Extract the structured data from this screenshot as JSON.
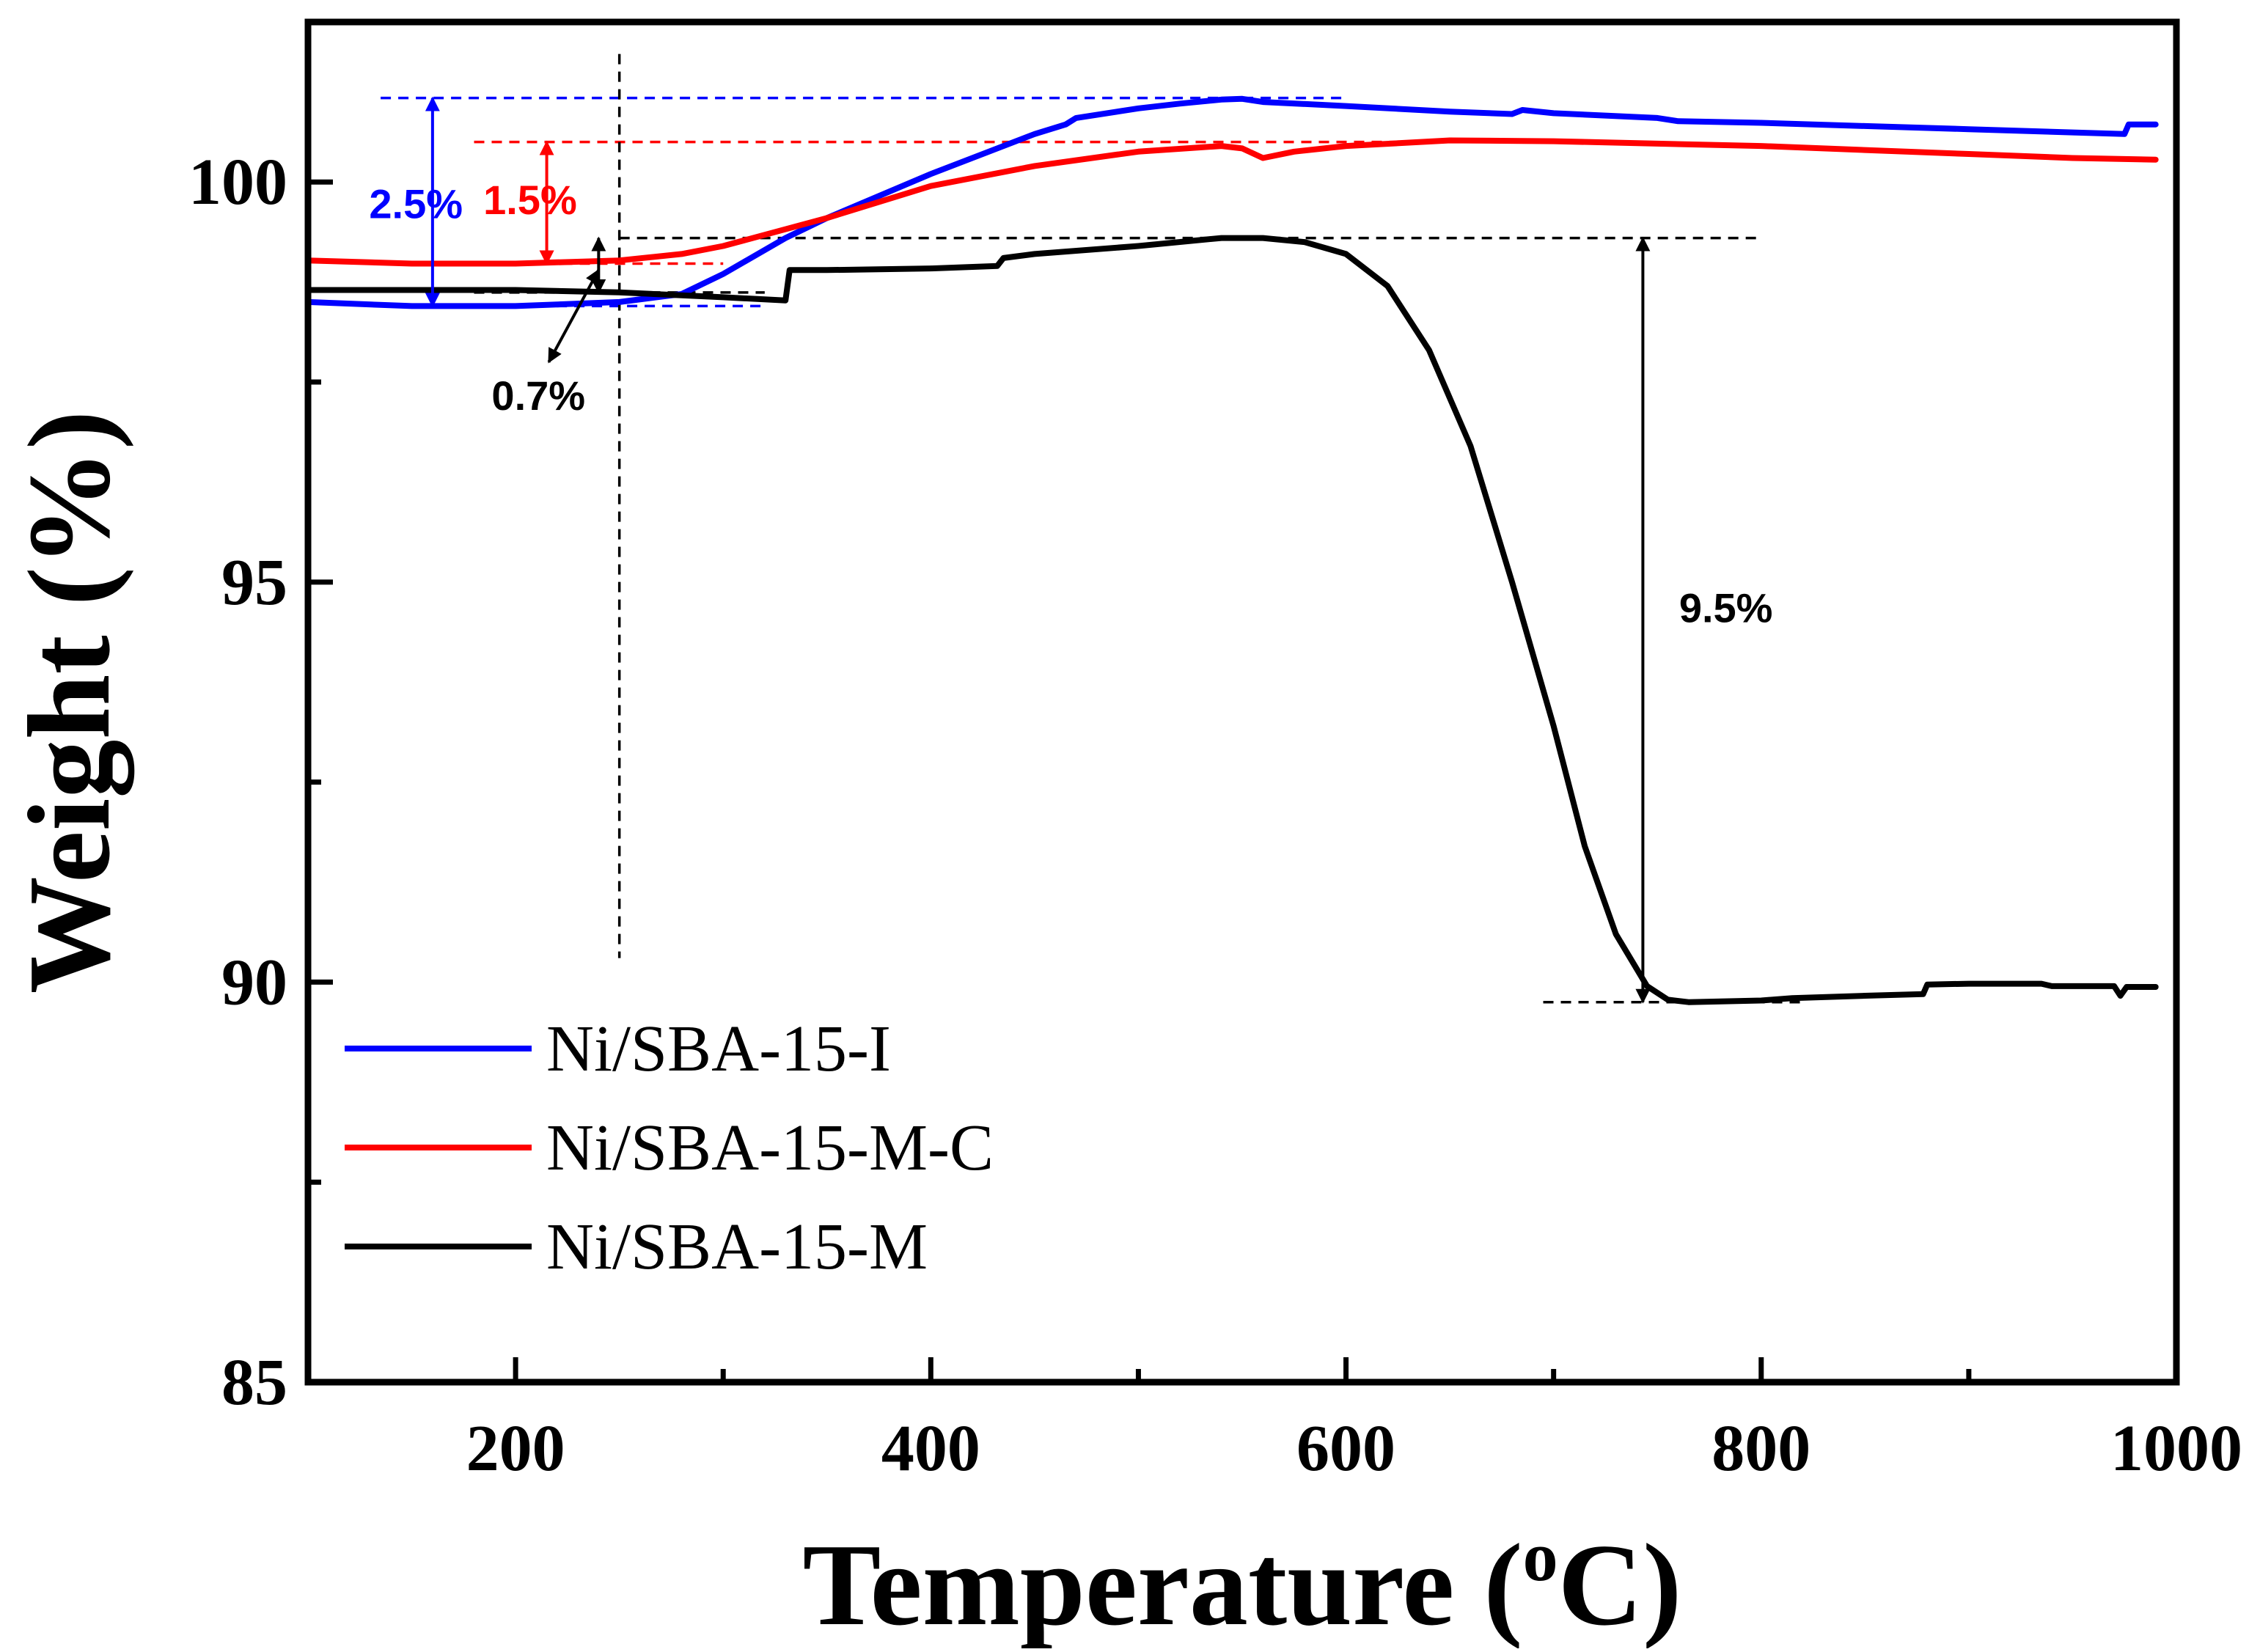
{
  "chart_data": {
    "type": "line",
    "title": "",
    "xlabel": "Temperature (",
    "xlabel_sup": "o",
    "xlabel_end": "C)",
    "ylabel": "Weight (%)",
    "xlim": [
      100,
      1000
    ],
    "ylim": [
      85,
      102
    ],
    "x_ticks": [
      200,
      400,
      600,
      800,
      1000
    ],
    "x_tick_labels": [
      "200",
      "400",
      "600",
      "800",
      "1000"
    ],
    "x_minor_ticks": [
      300,
      500,
      700,
      900
    ],
    "y_ticks": [
      85,
      90,
      95,
      100
    ],
    "y_tick_labels": [
      "85",
      "90",
      "95",
      "100"
    ],
    "y_minor_ticks": [
      87.5,
      92.5,
      97.5
    ],
    "grid": false,
    "legend_position": "bottom-left",
    "series": [
      {
        "name": "Ni/SBA-15-I",
        "color": "#0000ff",
        "x": [
          100,
          150,
          200,
          250,
          280,
          300,
          330,
          350,
          400,
          450,
          465,
          470,
          500,
          520,
          540,
          550,
          560,
          600,
          650,
          680,
          685,
          700,
          750,
          760,
          800,
          850,
          900,
          950,
          975,
          977,
          990
        ],
        "y": [
          98.5,
          98.45,
          98.45,
          98.5,
          98.6,
          98.85,
          99.3,
          99.55,
          100.1,
          100.6,
          100.72,
          100.8,
          100.92,
          100.98,
          101.03,
          101.04,
          101.0,
          100.95,
          100.88,
          100.85,
          100.9,
          100.86,
          100.8,
          100.76,
          100.74,
          100.7,
          100.66,
          100.62,
          100.6,
          100.72,
          100.72
        ]
      },
      {
        "name": "Ni/SBA-15-M-C",
        "color": "#ff0000",
        "x": [
          100,
          150,
          200,
          250,
          280,
          300,
          350,
          400,
          450,
          500,
          540,
          550,
          560,
          575,
          600,
          650,
          700,
          750,
          800,
          850,
          900,
          950,
          990
        ],
        "y": [
          99.02,
          98.98,
          98.98,
          99.02,
          99.1,
          99.2,
          99.55,
          99.95,
          100.2,
          100.38,
          100.45,
          100.42,
          100.3,
          100.38,
          100.45,
          100.52,
          100.51,
          100.48,
          100.45,
          100.4,
          100.35,
          100.3,
          100.28
        ]
      },
      {
        "name": "Ni/SBA-15-M",
        "color": "#000000",
        "x": [
          100,
          150,
          200,
          250,
          300,
          330,
          332,
          350,
          400,
          432,
          435,
          450,
          500,
          540,
          550,
          560,
          580,
          600,
          620,
          640,
          660,
          680,
          700,
          715,
          730,
          745,
          755,
          765,
          800,
          815,
          850,
          878,
          880,
          900,
          935,
          940,
          970,
          973,
          976,
          980,
          990
        ],
        "y": [
          98.65,
          98.65,
          98.65,
          98.62,
          98.56,
          98.52,
          98.9,
          98.9,
          98.92,
          98.95,
          99.05,
          99.1,
          99.2,
          99.3,
          99.3,
          99.3,
          99.25,
          99.1,
          98.7,
          97.9,
          96.7,
          95.0,
          93.2,
          91.7,
          90.6,
          89.95,
          89.78,
          89.75,
          89.77,
          89.8,
          89.83,
          89.85,
          89.97,
          89.98,
          89.98,
          89.95,
          89.95,
          89.83,
          89.94,
          89.94,
          89.94
        ]
      }
    ],
    "annotations": [
      {
        "text": "2.5%",
        "color": "#0000ff"
      },
      {
        "text": "1.5%",
        "color": "#ff0000"
      },
      {
        "text": "0.7%",
        "color": "#000000"
      },
      {
        "text": "9.5%",
        "color": "#000000"
      }
    ]
  }
}
